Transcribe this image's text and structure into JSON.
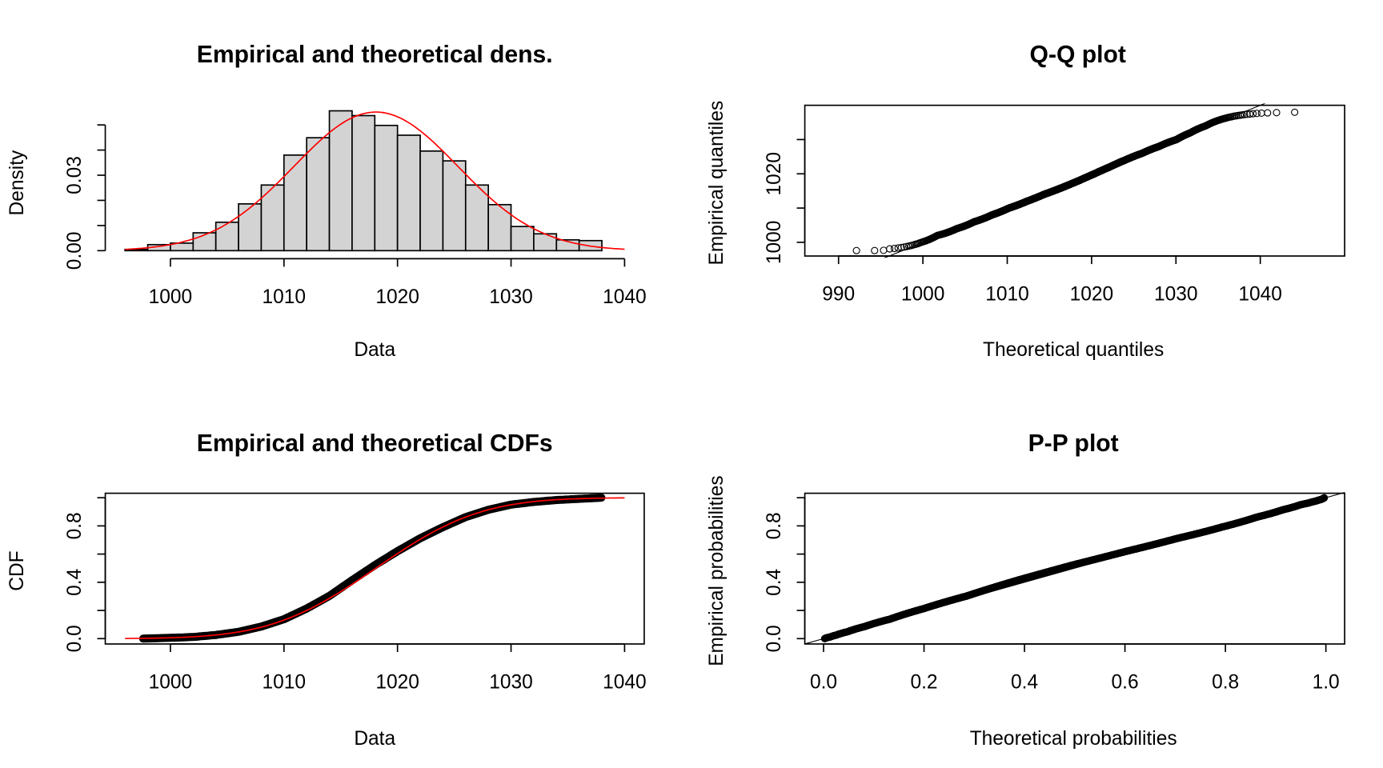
{
  "chart_data": [
    {
      "type": "bar",
      "panel": "histogram",
      "title": "Empirical and theoretical dens.",
      "xlabel": "Data",
      "ylabel": "Density",
      "xlim": [
        996,
        1040
      ],
      "ylim": [
        0,
        0.05
      ],
      "xticks": [
        1000,
        1010,
        1020,
        1030,
        1040
      ],
      "xtick_labels": [
        "1000",
        "1010",
        "1020",
        "1030",
        "1040"
      ],
      "yticks": [
        0,
        0.01,
        0.02,
        0.03,
        0.04,
        0.05
      ],
      "ytick_labels": [
        "0.00",
        "",
        "",
        "0.03",
        "",
        ""
      ],
      "breaks": [
        996,
        998,
        1000,
        1002,
        1004,
        1006,
        1008,
        1010,
        1012,
        1014,
        1016,
        1018,
        1020,
        1022,
        1024,
        1026,
        1028,
        1030,
        1032,
        1034,
        1036,
        1038
      ],
      "density": [
        0.0005,
        0.0024,
        0.003,
        0.0071,
        0.0113,
        0.0186,
        0.0261,
        0.038,
        0.0449,
        0.0556,
        0.0537,
        0.0498,
        0.0459,
        0.0396,
        0.0357,
        0.0261,
        0.0183,
        0.0096,
        0.0067,
        0.0043,
        0.004
      ],
      "bar_color": "#d3d3d3",
      "fitted": {
        "distribution": "normal",
        "mean": 1018.1,
        "sd": 7.24,
        "color": "#ff0000"
      }
    },
    {
      "type": "scatter",
      "panel": "qq",
      "title": "Q-Q plot",
      "xlabel": "Theoretical quantiles",
      "ylabel": "Empirical quantiles",
      "xlim": [
        986,
        1050
      ],
      "ylim": [
        996,
        1040
      ],
      "xticks": [
        990,
        1000,
        1010,
        1020,
        1030,
        1040
      ],
      "xtick_labels": [
        "990",
        "1000",
        "1010",
        "1020",
        "1030",
        "1040"
      ],
      "yticks": [
        1000,
        1010,
        1020,
        1030
      ],
      "ytick_labels": [
        "1000",
        "",
        "1020",
        ""
      ],
      "n_points": 3000,
      "reference_line": "y = x"
    },
    {
      "type": "line",
      "panel": "cdf",
      "title": "Empirical and theoretical CDFs",
      "xlabel": "Data",
      "ylabel": "CDF",
      "xlim": [
        996,
        1040
      ],
      "ylim": [
        0,
        1
      ],
      "xticks": [
        1000,
        1010,
        1020,
        1030,
        1040
      ],
      "xtick_labels": [
        "1000",
        "1010",
        "1020",
        "1030",
        "1040"
      ],
      "yticks": [
        0,
        0.2,
        0.4,
        0.6,
        0.8,
        1.0
      ],
      "ytick_labels": [
        "0.0",
        "",
        "0.4",
        "",
        "0.8",
        ""
      ],
      "series": [
        {
          "name": "empirical",
          "color": "#000000"
        },
        {
          "name": "theoretical",
          "color": "#ff0000"
        }
      ]
    },
    {
      "type": "scatter",
      "panel": "pp",
      "title": "P-P plot",
      "xlabel": "Theoretical probabilities",
      "ylabel": "Empirical probabilities",
      "xlim": [
        -0.04,
        1.04
      ],
      "ylim": [
        0,
        1
      ],
      "xticks": [
        0,
        0.2,
        0.4,
        0.6,
        0.8,
        1.0
      ],
      "xtick_labels": [
        "0.0",
        "0.2",
        "0.4",
        "0.6",
        "0.8",
        "1.0"
      ],
      "yticks": [
        0,
        0.2,
        0.4,
        0.6,
        0.8,
        1.0
      ],
      "ytick_labels": [
        "0.0",
        "",
        "0.4",
        "",
        "0.8",
        ""
      ],
      "reference_line": "y = x"
    }
  ]
}
